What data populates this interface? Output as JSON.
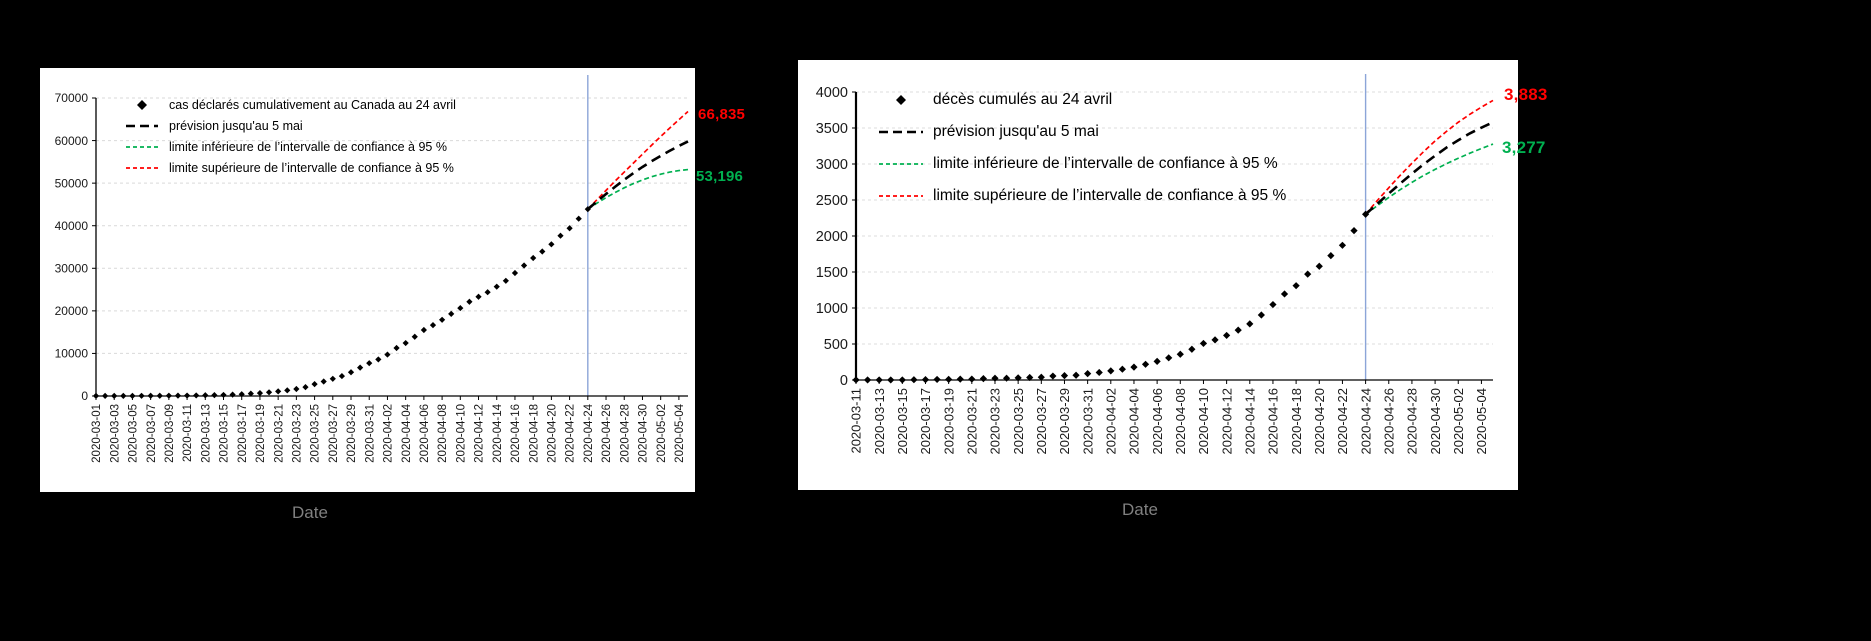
{
  "page": {
    "background": "#000000"
  },
  "charts": [
    {
      "id": "cases",
      "xlabel": "Date",
      "legend": [
        {
          "marker": "diamond",
          "color": "#000000",
          "label": "cas déclarés cumulativement au Canada au 24 avril"
        },
        {
          "marker": "long-dash",
          "color": "#000000",
          "label": "prévision jusqu'au 5 mai"
        },
        {
          "marker": "short-dash",
          "color": "#00B050",
          "label": "limite inférieure de l’intervalle de confiance à 95 %"
        },
        {
          "marker": "short-dash",
          "color": "#FF0000",
          "label": "limite supérieure de l’intervalle de confiance à 95 %"
        }
      ],
      "annotations": [
        {
          "text": "66,835",
          "color": "#FF0000"
        },
        {
          "text": "53,196",
          "color": "#00B050"
        }
      ]
    },
    {
      "id": "deaths",
      "xlabel": "Date",
      "legend": [
        {
          "marker": "diamond",
          "color": "#000000",
          "label": "décès cumulés au 24 avril"
        },
        {
          "marker": "long-dash",
          "color": "#000000",
          "label": "prévision jusqu'au 5 mai"
        },
        {
          "marker": "short-dash",
          "color": "#00B050",
          "label": "limite inférieure de l’intervalle de confiance à 95 %"
        },
        {
          "marker": "short-dash",
          "color": "#FF0000",
          "label": "limite supérieure de l’intervalle de confiance à 95 %"
        }
      ],
      "annotations": [
        {
          "text": "3,883",
          "color": "#FF0000"
        },
        {
          "text": "3,277",
          "color": "#00B050"
        }
      ]
    }
  ],
  "chart_data": [
    {
      "type": "scatter",
      "xlabel": "Date",
      "ylim": [
        0,
        70000
      ],
      "yticks": [
        0,
        10000,
        20000,
        30000,
        40000,
        50000,
        60000,
        70000
      ],
      "x_domain": [
        "2020-03-01",
        "2020-05-05"
      ],
      "x_ticks": [
        "2020-03-01",
        "2020-03-03",
        "2020-03-05",
        "2020-03-07",
        "2020-03-09",
        "2020-03-11",
        "2020-03-13",
        "2020-03-15",
        "2020-03-17",
        "2020-03-19",
        "2020-03-21",
        "2020-03-23",
        "2020-03-25",
        "2020-03-27",
        "2020-03-29",
        "2020-03-31",
        "2020-04-02",
        "2020-04-04",
        "2020-04-06",
        "2020-04-08",
        "2020-04-10",
        "2020-04-12",
        "2020-04-14",
        "2020-04-16",
        "2020-04-18",
        "2020-04-20",
        "2020-04-22",
        "2020-04-24",
        "2020-04-26",
        "2020-04-28",
        "2020-04-30",
        "2020-05-02",
        "2020-05-04"
      ],
      "vline_date": "2020-04-24",
      "vline_color": "#8CA5D8",
      "grid_color": "#D9D9D9",
      "series": [
        {
          "name": "cas déclarés cumulativement au Canada au 24 avril",
          "kind": "points",
          "color": "#000000",
          "start_date": "2020-03-01",
          "values": [
            24,
            27,
            30,
            33,
            37,
            45,
            54,
            60,
            77,
            93,
            103,
            138,
            176,
            198,
            250,
            324,
            424,
            569,
            690,
            872,
            1087,
            1331,
            1648,
            2091,
            2792,
            3409,
            4043,
            4682,
            5576,
            6671,
            7708,
            8591,
            9731,
            11283,
            12437,
            13912,
            15496,
            16653,
            17897,
            19290,
            20654,
            22148,
            23318,
            24383,
            25680,
            27063,
            28899,
            30659,
            32412,
            33951,
            35633,
            37657,
            39401,
            41648,
            43888
          ]
        },
        {
          "name": "limite inférieure de l’intervalle de confiance à 95 %",
          "kind": "dashed-line",
          "dash": "short",
          "color": "#00B050",
          "start_date": "2020-04-24",
          "values": [
            43888,
            45300,
            46600,
            47800,
            48900,
            49900,
            50750,
            51500,
            52100,
            52600,
            52950,
            53196
          ]
        },
        {
          "name": "limite supérieure de l’intervalle de confiance à 95 %",
          "kind": "dashed-line",
          "dash": "short",
          "color": "#FF0000",
          "start_date": "2020-04-24",
          "values": [
            43888,
            46100,
            48300,
            50500,
            52600,
            54700,
            56800,
            58900,
            60950,
            62950,
            64900,
            66835
          ]
        },
        {
          "name": "prévision jusqu'au 5 mai",
          "kind": "dashed-line",
          "dash": "long",
          "color": "#000000",
          "start_date": "2020-04-24",
          "values": [
            43888,
            45700,
            47450,
            49150,
            50800,
            52350,
            53800,
            55150,
            56400,
            57600,
            58750,
            59800
          ]
        }
      ]
    },
    {
      "type": "scatter",
      "xlabel": "Date",
      "ylim": [
        0,
        4000
      ],
      "yticks": [
        0,
        500,
        1000,
        1500,
        2000,
        2500,
        3000,
        3500,
        4000
      ],
      "x_domain": [
        "2020-03-11",
        "2020-05-05"
      ],
      "x_ticks": [
        "2020-03-11",
        "2020-03-13",
        "2020-03-15",
        "2020-03-17",
        "2020-03-19",
        "2020-03-21",
        "2020-03-23",
        "2020-03-25",
        "2020-03-27",
        "2020-03-29",
        "2020-03-31",
        "2020-04-02",
        "2020-04-04",
        "2020-04-06",
        "2020-04-08",
        "2020-04-10",
        "2020-04-12",
        "2020-04-14",
        "2020-04-16",
        "2020-04-18",
        "2020-04-20",
        "2020-04-22",
        "2020-04-24",
        "2020-04-26",
        "2020-04-28",
        "2020-04-30",
        "2020-05-02",
        "2020-05-04"
      ],
      "vline_date": "2020-04-24",
      "vline_color": "#8CA5D8",
      "grid_color": "#DCDCDC",
      "series": [
        {
          "name": "décès cumulés au 24 avril",
          "kind": "points",
          "color": "#000000",
          "start_date": "2020-03-11",
          "values": [
            1,
            1,
            1,
            1,
            1,
            4,
            5,
            8,
            9,
            12,
            13,
            19,
            24,
            25,
            30,
            35,
            39,
            55,
            61,
            66,
            89,
            105,
            127,
            150,
            179,
            218,
            259,
            308,
            358,
            427,
            508,
            557,
            619,
            693,
            780,
            903,
            1048,
            1195,
            1310,
            1470,
            1580,
            1727,
            1871,
            2075,
            2302
          ]
        },
        {
          "name": "limite inférieure de l’intervalle de confiance à 95 %",
          "kind": "dashed-line",
          "dash": "short",
          "color": "#00B050",
          "start_date": "2020-04-24",
          "values": [
            2302,
            2420,
            2535,
            2645,
            2745,
            2840,
            2925,
            3005,
            3080,
            3150,
            3215,
            3277
          ]
        },
        {
          "name": "limite supérieure de l’intervalle de confiance à 95 %",
          "kind": "dashed-line",
          "dash": "short",
          "color": "#FF0000",
          "start_date": "2020-04-24",
          "values": [
            2302,
            2490,
            2670,
            2845,
            3010,
            3170,
            3320,
            3455,
            3580,
            3690,
            3790,
            3883
          ]
        },
        {
          "name": "prévision jusqu'au 5 mai",
          "kind": "dashed-line",
          "dash": "long",
          "color": "#000000",
          "start_date": "2020-04-24",
          "values": [
            2302,
            2445,
            2590,
            2730,
            2865,
            2995,
            3115,
            3230,
            3330,
            3425,
            3505,
            3580
          ]
        }
      ]
    }
  ]
}
